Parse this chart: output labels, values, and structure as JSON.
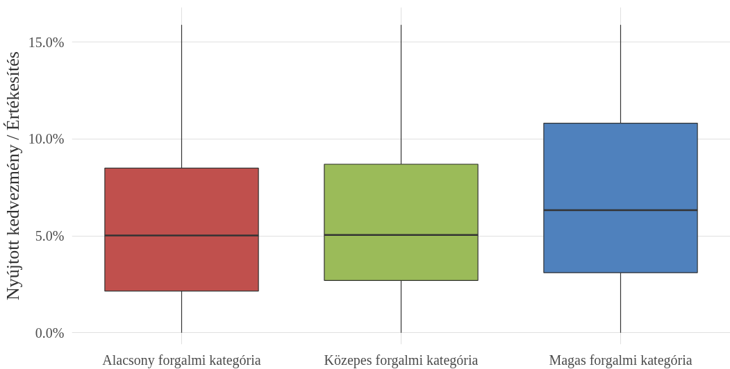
{
  "chart_data": {
    "type": "box",
    "ylabel": "Nyújtott kedvezmény / Értékesítés",
    "categories": [
      "Alacsony forgalmi kategória",
      "Közepes forgalmi kategória",
      "Magas forgalmi kategória"
    ],
    "colors": [
      "#c0504d",
      "#9bbb59",
      "#4f81bd"
    ],
    "boxes": [
      {
        "low": 0,
        "q1": 2.15,
        "median": 5.02,
        "q3": 8.5,
        "high": 15.9
      },
      {
        "low": 0,
        "q1": 2.7,
        "median": 5.05,
        "q3": 8.7,
        "high": 15.9
      },
      {
        "low": 0,
        "q1": 3.1,
        "median": 6.33,
        "q3": 10.82,
        "high": 15.9
      }
    ],
    "ylim": [
      -0.6,
      16.8
    ],
    "yticks": [
      {
        "value": 0,
        "label": "0.0%"
      },
      {
        "value": 5,
        "label": "5.0%"
      },
      {
        "value": 10,
        "label": "10.0%"
      },
      {
        "value": 15,
        "label": "15.0%"
      }
    ],
    "grid": true
  }
}
